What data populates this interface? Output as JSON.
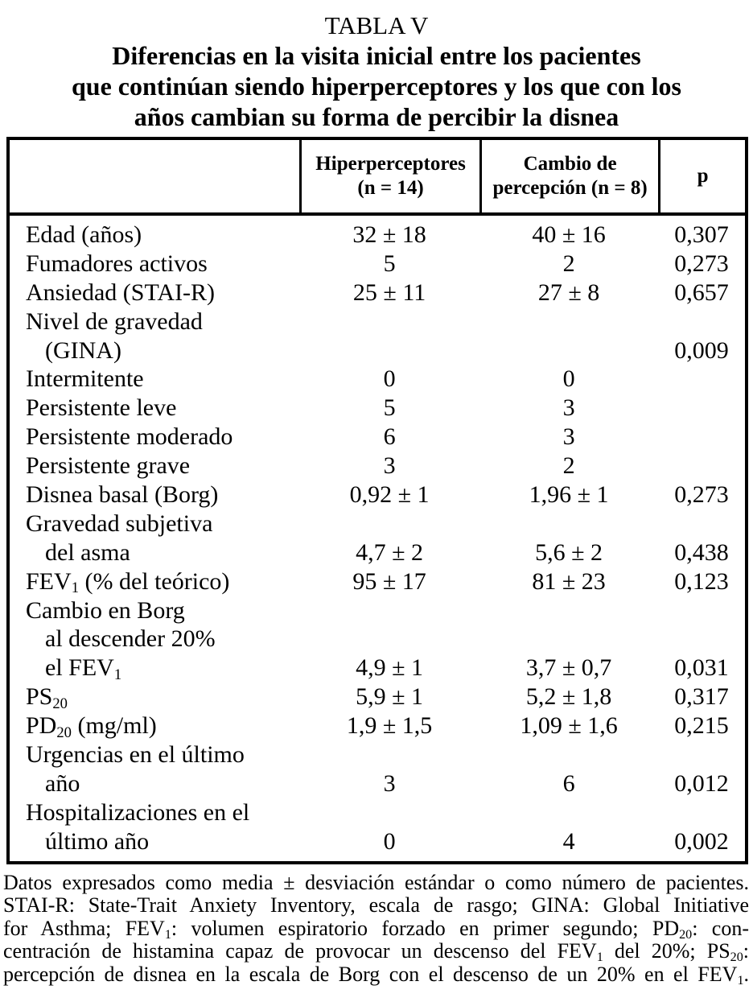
{
  "page": {
    "title": "TABLA V",
    "subtitle_lines": [
      "Diferencias en la visita inicial entre los pacientes",
      "que continúan siendo hiperperceptores y los que con los",
      "años cambian su forma de percibir la disnea"
    ]
  },
  "colors": {
    "text": "#000000",
    "background": "#ffffff",
    "border": "#000000"
  },
  "chart_data": {
    "type": "table",
    "title": "TABLA V — Diferencias en la visita inicial entre los pacientes que continúan siendo hiperperceptores y los que con los años cambian su forma de percibir la disnea",
    "columns": [
      "",
      "Hiperperceptores (n = 14)",
      "Cambio de percepción (n = 8)",
      "p"
    ],
    "rows": [
      [
        "Edad (años)",
        "32 ± 18",
        "40 ± 16",
        "0,307"
      ],
      [
        "Fumadores activos",
        "5",
        "2",
        "0,273"
      ],
      [
        "Ansiedad (STAI-R)",
        "25 ± 11",
        "27 ± 8",
        "0,657"
      ],
      [
        "Nivel de gravedad (GINA)",
        "",
        "",
        "0,009"
      ],
      [
        "Intermitente",
        "0",
        "0",
        ""
      ],
      [
        "Persistente leve",
        "5",
        "3",
        ""
      ],
      [
        "Persistente moderado",
        "6",
        "3",
        ""
      ],
      [
        "Persistente grave",
        "3",
        "2",
        ""
      ],
      [
        "Disnea basal (Borg)",
        "0,92 ± 1",
        "1,96 ± 1",
        "0,273"
      ],
      [
        "Gravedad subjetiva del asma",
        "4,7 ± 2",
        "5,6 ± 2",
        "0,438"
      ],
      [
        "FEV1 (% del teórico)",
        "95 ± 17",
        "81 ± 23",
        "0,123"
      ],
      [
        "Cambio en Borg al descender 20% el FEV1",
        "4,9 ± 1",
        "3,7 ± 0,7",
        "0,031"
      ],
      [
        "PS20",
        "5,9 ± 1",
        "5,2 ± 1,8",
        "0,317"
      ],
      [
        "PD20 (mg/ml)",
        "1,9 ± 1,5",
        "1,09 ± 1,6",
        "0,215"
      ],
      [
        "Urgencias en el último año",
        "3",
        "6",
        "0,012"
      ],
      [
        "Hospitalizaciones en el último año",
        "0",
        "4",
        "0,002"
      ]
    ]
  },
  "table": {
    "columns": [
      {
        "header_lines": [
          "",
          ""
        ]
      },
      {
        "header_lines": [
          "Hiperperceptores",
          "(n = 14)"
        ]
      },
      {
        "header_lines": [
          "Cambio de",
          "percepción (n = 8)"
        ]
      },
      {
        "header_lines": [
          "p",
          ""
        ]
      }
    ],
    "rows": [
      {
        "label": [
          {
            "t": "Edad (años)"
          }
        ],
        "v1": "32 ± 18",
        "v2": "40 ± 16",
        "p": "0,307"
      },
      {
        "label": [
          {
            "t": "Fumadores activos"
          }
        ],
        "v1": "5",
        "v2": "2",
        "p": "0,273"
      },
      {
        "label": [
          {
            "t": "Ansiedad (STAI-R)"
          }
        ],
        "v1": "25 ± 11",
        "v2": "27 ± 8",
        "p": "0,657"
      },
      {
        "label": [
          {
            "t": "Nivel de gravedad"
          }
        ],
        "v1": "",
        "v2": "",
        "p": ""
      },
      {
        "label": [
          {
            "t": "(GINA)"
          }
        ],
        "indent": true,
        "v1": "",
        "v2": "",
        "p": "0,009"
      },
      {
        "label": [
          {
            "t": "Intermitente"
          }
        ],
        "v1": "0",
        "v2": "0",
        "p": ""
      },
      {
        "label": [
          {
            "t": "Persistente leve"
          }
        ],
        "v1": "5",
        "v2": "3",
        "p": ""
      },
      {
        "label": [
          {
            "t": "Persistente moderado"
          }
        ],
        "v1": "6",
        "v2": "3",
        "p": ""
      },
      {
        "label": [
          {
            "t": "Persistente grave"
          }
        ],
        "v1": "3",
        "v2": "2",
        "p": ""
      },
      {
        "label": [
          {
            "t": "Disnea basal (Borg)"
          }
        ],
        "v1": "0,92 ± 1",
        "v2": "1,96 ± 1",
        "p": "0,273"
      },
      {
        "label": [
          {
            "t": "Gravedad subjetiva"
          }
        ],
        "v1": "",
        "v2": "",
        "p": ""
      },
      {
        "label": [
          {
            "t": "del asma"
          }
        ],
        "indent": true,
        "v1": "4,7 ± 2",
        "v2": "5,6 ± 2",
        "p": "0,438"
      },
      {
        "label": [
          {
            "t": "FEV"
          },
          {
            "t": "1",
            "sub": true
          },
          {
            "t": " (% del teórico)"
          }
        ],
        "v1": "95 ± 17",
        "v2": "81 ± 23",
        "p": "0,123"
      },
      {
        "label": [
          {
            "t": "Cambio en Borg"
          }
        ],
        "v1": "",
        "v2": "",
        "p": ""
      },
      {
        "label": [
          {
            "t": "al descender 20%"
          }
        ],
        "indent": true,
        "v1": "",
        "v2": "",
        "p": ""
      },
      {
        "label": [
          {
            "t": "el FEV"
          },
          {
            "t": "1",
            "sub": true
          }
        ],
        "indent": true,
        "v1": "4,9 ± 1",
        "v2": "3,7 ± 0,7",
        "p": "0,031"
      },
      {
        "label": [
          {
            "t": "PS"
          },
          {
            "t": "20",
            "sub": true
          }
        ],
        "v1": "5,9 ± 1",
        "v2": "5,2 ± 1,8",
        "p": "0,317"
      },
      {
        "label": [
          {
            "t": "PD"
          },
          {
            "t": "20",
            "sub": true
          },
          {
            "t": " (mg/ml)"
          }
        ],
        "v1": "1,9 ± 1,5",
        "v2": "1,09 ± 1,6",
        "p": "0,215"
      },
      {
        "label": [
          {
            "t": "Urgencias en el último"
          }
        ],
        "v1": "",
        "v2": "",
        "p": ""
      },
      {
        "label": [
          {
            "t": "año"
          }
        ],
        "indent": true,
        "v1": "3",
        "v2": "6",
        "p": "0,012"
      },
      {
        "label": [
          {
            "t": "Hospitalizaciones en el"
          }
        ],
        "v1": "",
        "v2": "",
        "p": ""
      },
      {
        "label": [
          {
            "t": "último año"
          }
        ],
        "indent": true,
        "v1": "0",
        "v2": "4",
        "p": "0,002"
      }
    ]
  },
  "footnotes": {
    "lines": [
      [
        {
          "t": "Datos expresados como media ± desviación estándar o como número de pacientes."
        }
      ],
      [
        {
          "t": "STAI-R: State-Trait Anxiety Inventory, escala de rasgo; GINA: Global Initiative"
        }
      ],
      [
        {
          "t": "for Asthma; FEV"
        },
        {
          "t": "1",
          "sub": true
        },
        {
          "t": ": volumen espiratorio forzado en primer segundo; PD"
        },
        {
          "t": "20",
          "sub": true
        },
        {
          "t": ": con-"
        }
      ],
      [
        {
          "t": "centración de histamina capaz de provocar un descenso del FEV"
        },
        {
          "t": "1",
          "sub": true
        },
        {
          "t": " del 20%; PS"
        },
        {
          "t": "20",
          "sub": true
        },
        {
          "t": ":"
        }
      ],
      [
        {
          "t": "percepción de disnea en la escala de Borg con el descenso de un 20% en el FEV"
        },
        {
          "t": "1",
          "sub": true
        },
        {
          "t": "."
        }
      ]
    ]
  }
}
